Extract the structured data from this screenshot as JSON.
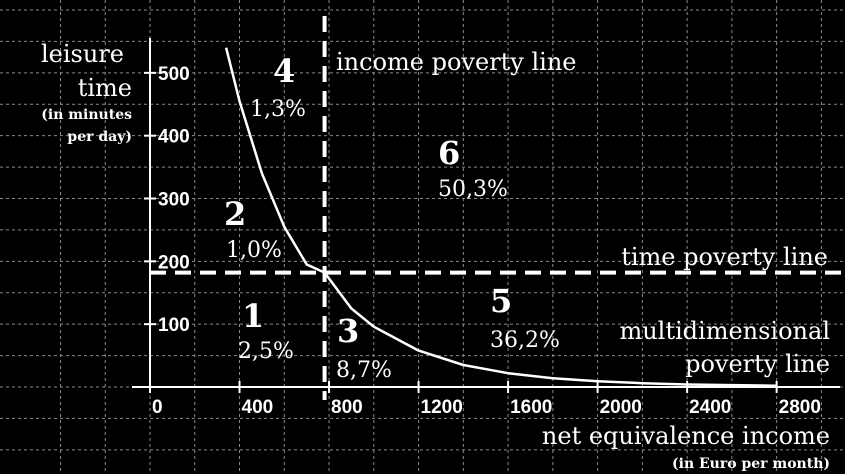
{
  "chart_data": {
    "type": "line",
    "x_ticks": [
      0,
      400,
      800,
      1200,
      1600,
      2000,
      2400,
      2800
    ],
    "y_ticks": [
      100,
      200,
      300,
      400,
      500
    ],
    "xlim": [
      0,
      3000
    ],
    "ylim": [
      0,
      580
    ],
    "grid": true,
    "y_axis_title": {
      "line1": "leisure",
      "line2": "time",
      "sub1": "(in minutes",
      "sub2": "per day)"
    },
    "x_axis_title": {
      "line1": "net equivalence income",
      "sub": "(in Euro per month)"
    },
    "series": [
      {
        "x": [
          340,
          400,
          500,
          600,
          700,
          780,
          900,
          1000,
          1200,
          1400,
          1600,
          1800,
          2000,
          2200,
          2400,
          2600,
          2800
        ],
        "y": [
          540,
          455,
          340,
          255,
          195,
          182,
          125,
          96,
          58,
          35,
          22,
          14,
          9,
          6,
          4,
          3,
          2
        ]
      }
    ],
    "income_poverty_line": {
      "x": 780,
      "label": "income poverty line"
    },
    "time_poverty_line": {
      "y": 182,
      "label": "time poverty line"
    },
    "multidimensional_label": {
      "line1": "multidimensional",
      "line2": "poverty line"
    },
    "regions": [
      {
        "number": "1",
        "value": "2,5%"
      },
      {
        "number": "2",
        "value": "1,0%"
      },
      {
        "number": "3",
        "value": "8,7%"
      },
      {
        "number": "4",
        "value": "1,3%"
      },
      {
        "number": "5",
        "value": "36,2%"
      },
      {
        "number": "6",
        "value": "50,3%"
      }
    ]
  }
}
